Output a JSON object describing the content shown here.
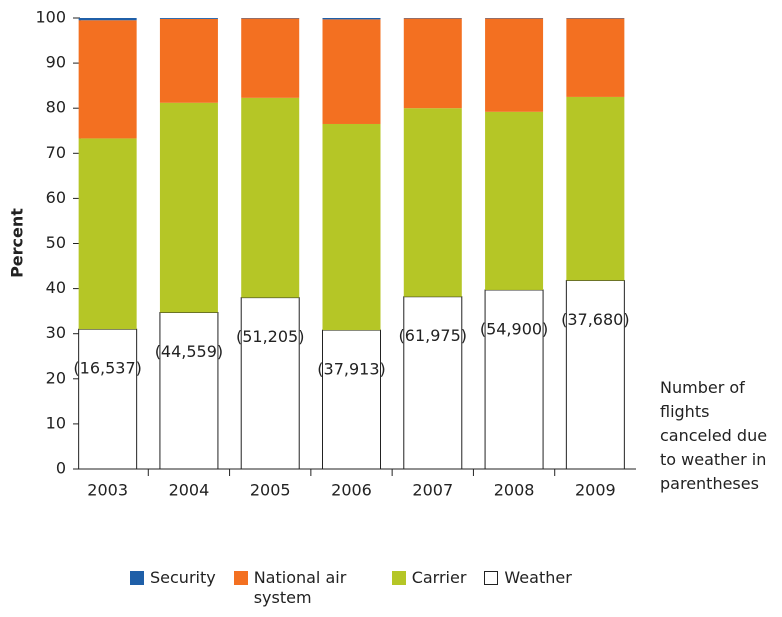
{
  "chart_data": {
    "type": "stacked_bar",
    "y_label": "Percent",
    "categories": [
      "2003",
      "2004",
      "2005",
      "2006",
      "2007",
      "2008",
      "2009"
    ],
    "series": [
      {
        "name": "Weather",
        "color": "#ffffff",
        "values": [
          31,
          34.7,
          38,
          30.8,
          38.2,
          39.7,
          41.8
        ]
      },
      {
        "name": "Carrier",
        "color": "#b5c626",
        "values": [
          42.3,
          46.5,
          44.3,
          45.7,
          41.8,
          39.5,
          40.7
        ]
      },
      {
        "name": "National air system",
        "color": "#f37021",
        "values": [
          26.2,
          18.6,
          17.6,
          23.2,
          19.9,
          20.7,
          17.4
        ]
      },
      {
        "name": "Security",
        "color": "#1f5fa8",
        "values": [
          0.5,
          0.2,
          0.1,
          0.3,
          0.1,
          0.1,
          0.1
        ]
      }
    ],
    "legend_order": [
      3,
      2,
      1,
      0
    ],
    "annotations": [
      "(16,537)",
      "(44,559)",
      "(51,205)",
      "(37,913)",
      "(61,975)",
      "(54,900)",
      "(37,680)"
    ],
    "note": [
      "Number  of",
      "flights",
      "canceled due",
      "to weather in",
      "parentheses"
    ],
    "ylim": [
      0,
      100
    ],
    "yticks": [
      0,
      10,
      20,
      30,
      40,
      50,
      60,
      70,
      80,
      90,
      100
    ]
  }
}
